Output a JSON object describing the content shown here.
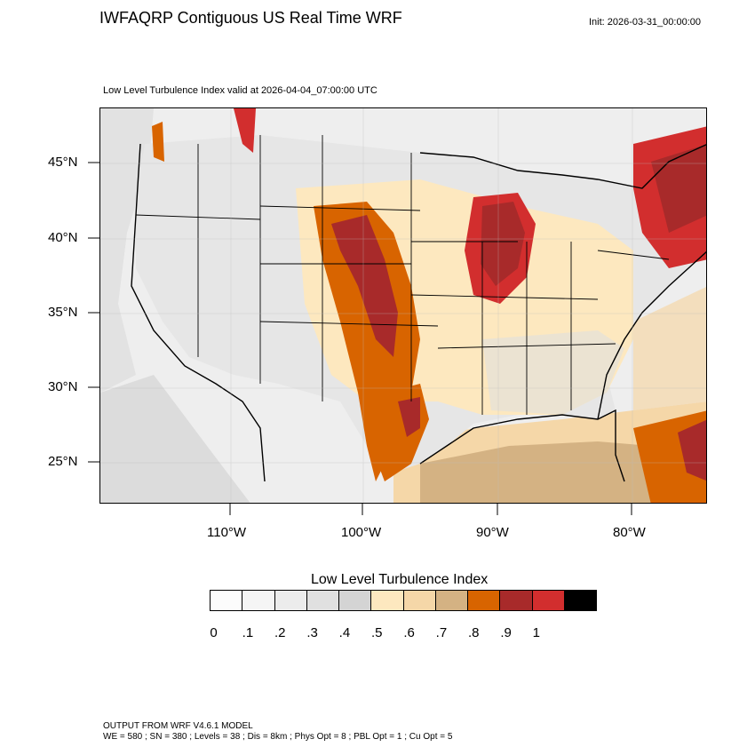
{
  "header": {
    "title": "IWFAQRP Contiguous US Real Time WRF",
    "init": "Init: 2026-03-31_00:00:00",
    "subtitle": "Low Level Turbulence Index valid at 2026-04-04_07:00:00 UTC"
  },
  "axes": {
    "lat_labels": [
      "45°N",
      "40°N",
      "35°N",
      "30°N",
      "25°N"
    ],
    "lon_labels": [
      "110°W",
      "100°W",
      "90°W",
      "80°W"
    ]
  },
  "colorbar": {
    "title": "Low Level Turbulence Index",
    "colors": [
      "#fcfcfc",
      "#f5f5f5",
      "#ececec",
      "#e0e0e0",
      "#d4d4d4",
      "#fde8bf",
      "#f5d7a8",
      "#d4b283",
      "#d86400",
      "#a82a2a",
      "#d22e2e",
      "#000000"
    ],
    "labels": [
      "0",
      ".1",
      ".2",
      ".3",
      ".4",
      ".5",
      ".6",
      ".7",
      ".8",
      ".9",
      "1"
    ]
  },
  "footer": {
    "line1": "OUTPUT FROM WRF V4.6.1 MODEL",
    "line2": "WE = 580 ; SN = 380 ; Levels = 38 ; Dis = 8km ; Phys Opt = 8 ; PBL Opt = 1 ; Cu Opt = 5"
  }
}
